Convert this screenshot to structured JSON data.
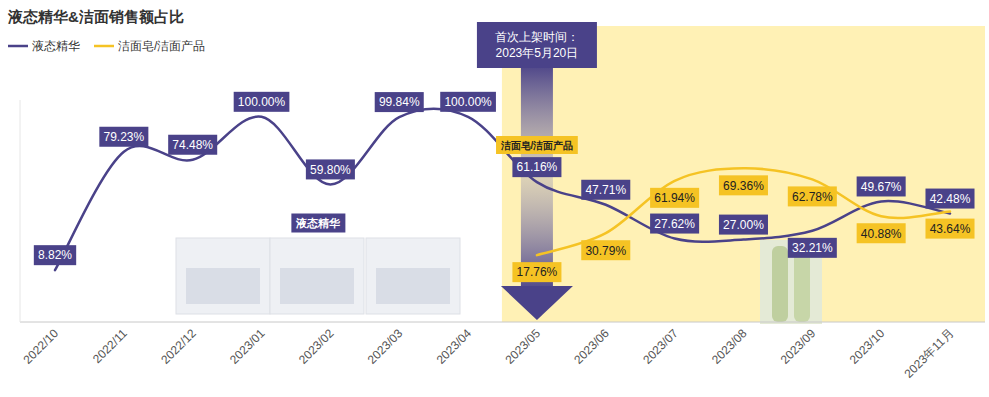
{
  "chart_data": {
    "type": "line",
    "title": "液态精华&洁面销售额占比",
    "categories": [
      "2022/10",
      "2022/11",
      "2022/12",
      "2023/01",
      "2023/02",
      "2023/03",
      "2023/04",
      "2023/05",
      "2023/06",
      "2023/07",
      "2023/08",
      "2023/09",
      "2023/10",
      "2023年11月"
    ],
    "series": [
      {
        "name": "液态精华",
        "color": "#4a4289",
        "values": [
          8.82,
          79.23,
          74.48,
          100.0,
          59.8,
          99.84,
          100.0,
          61.16,
          47.71,
          27.62,
          27.0,
          32.21,
          49.67,
          42.48
        ],
        "value_labels": [
          "8.82%",
          "79.23%",
          "74.48%",
          "100.00%",
          "59.80%",
          "99.84%",
          "100.00%",
          "61.16%",
          "47.71%",
          "27.62%",
          "27.00%",
          "32.21%",
          "49.67%",
          "42.48%"
        ]
      },
      {
        "name": "洁面皂/洁面产品",
        "color": "#f5c324",
        "values": [
          null,
          null,
          null,
          null,
          null,
          null,
          null,
          17.76,
          30.79,
          61.94,
          69.36,
          62.78,
          40.88,
          43.64
        ],
        "value_labels": [
          null,
          null,
          null,
          null,
          null,
          null,
          null,
          "17.76%",
          "30.79%",
          "61.94%",
          "69.36%",
          "62.78%",
          "40.88%",
          "43.64%"
        ]
      }
    ],
    "ylim": [
      -22,
      110
    ],
    "yticks": [],
    "tick_labels": "x",
    "grid": false,
    "legend": "top-left",
    "data_labels": true,
    "line_style": "smooth",
    "marker": "none",
    "annotations": [
      {
        "text": [
          "首次上架时间：",
          "2023年5月20日"
        ],
        "x": "2023/05"
      },
      {
        "text": "洁面皂/洁面产品",
        "series": 1
      },
      {
        "text": "液态精华",
        "series": 0
      }
    ]
  }
}
